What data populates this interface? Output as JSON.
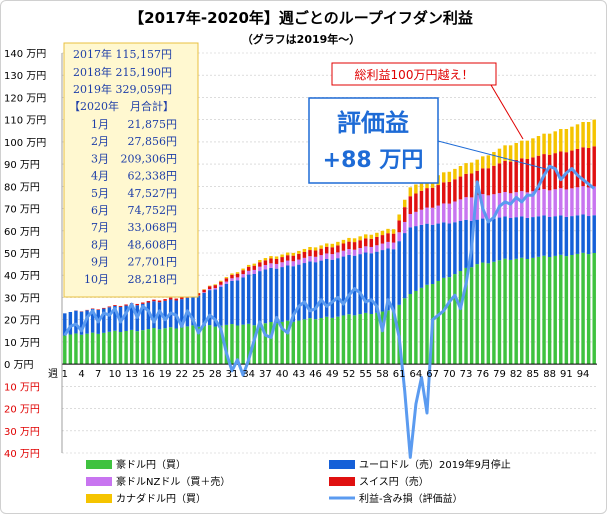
{
  "chart_data": {
    "type": "bar",
    "title": "【2017年-2020年】週ごとのループイフダン利益",
    "subtitle": "（グラフは2019年～）",
    "ylabel_unit": "万円",
    "xlabel": "週",
    "ylim": [
      -40,
      140
    ],
    "y_ticks": [
      {
        "v": 140,
        "label": "140 万円"
      },
      {
        "v": 130,
        "label": "130 万円"
      },
      {
        "v": 120,
        "label": "120 万円"
      },
      {
        "v": 110,
        "label": "110 万円"
      },
      {
        "v": 100,
        "label": "100 万円"
      },
      {
        "v": 90,
        "label": "90 万円"
      },
      {
        "v": 80,
        "label": "80 万円"
      },
      {
        "v": 70,
        "label": "70 万円"
      },
      {
        "v": 60,
        "label": "60 万円"
      },
      {
        "v": 50,
        "label": "50 万円"
      },
      {
        "v": 40,
        "label": "40 万円"
      },
      {
        "v": 30,
        "label": "30 万円"
      },
      {
        "v": 20,
        "label": "20 万円"
      },
      {
        "v": 10,
        "label": "10 万円"
      },
      {
        "v": 0,
        "label": "0 万円"
      },
      {
        "v": -10,
        "label": "10 万円"
      },
      {
        "v": -20,
        "label": "20 万円"
      },
      {
        "v": -30,
        "label": "30 万円"
      },
      {
        "v": -40,
        "label": "40 万円"
      }
    ],
    "x_tick_labels": [
      "1",
      "4",
      "7",
      "10",
      "13",
      "16",
      "19",
      "22",
      "25",
      "28",
      "31",
      "34",
      "37",
      "40",
      "43",
      "46",
      "49",
      "52",
      "55",
      "58",
      "61",
      "64",
      "67",
      "70",
      "73",
      "76",
      "79",
      "82",
      "85",
      "88",
      "91",
      "94"
    ],
    "weeks": 96,
    "legend_placement": "bottom",
    "series": [
      {
        "name": "豪ドル円（買）",
        "color": "#3fc23f",
        "knots": [
          [
            1,
            13
          ],
          [
            24,
            17
          ],
          [
            36,
            18
          ],
          [
            60,
            24
          ],
          [
            63,
            32
          ],
          [
            75,
            45
          ],
          [
            80,
            47
          ],
          [
            96,
            50
          ]
        ]
      },
      {
        "name": "ユーロドル（売）2019年9月停止",
        "color": "#1560d8",
        "knots": [
          [
            1,
            10
          ],
          [
            24,
            13
          ],
          [
            36,
            24
          ],
          [
            60,
            28
          ],
          [
            63,
            30
          ],
          [
            75,
            20
          ],
          [
            80,
            19
          ],
          [
            96,
            17
          ]
        ]
      },
      {
        "name": "豪ドルNZドル（買＋売）",
        "color": "#c875f0",
        "knots": [
          [
            1,
            0
          ],
          [
            24,
            0
          ],
          [
            36,
            2
          ],
          [
            60,
            3
          ],
          [
            63,
            6
          ],
          [
            75,
            11
          ],
          [
            80,
            11
          ],
          [
            96,
            13
          ]
        ]
      },
      {
        "name": "スイス円（売）",
        "color": "#e01010",
        "knots": [
          [
            1,
            0
          ],
          [
            24,
            1
          ],
          [
            36,
            2
          ],
          [
            60,
            4
          ],
          [
            63,
            8
          ],
          [
            75,
            11
          ],
          [
            80,
            14
          ],
          [
            96,
            18
          ]
        ]
      },
      {
        "name": "カナダドル円（買）",
        "color": "#f5c400",
        "knots": [
          [
            1,
            0
          ],
          [
            24,
            0
          ],
          [
            36,
            1
          ],
          [
            60,
            2
          ],
          [
            63,
            4
          ],
          [
            75,
            5
          ],
          [
            80,
            7
          ],
          [
            96,
            12
          ]
        ]
      }
    ],
    "line_series": {
      "name": "利益-含み損（評価益）",
      "color": "#5b9bf0",
      "values": [
        13,
        17,
        18,
        15,
        21,
        24,
        19,
        23,
        22,
        25,
        19,
        23,
        27,
        21,
        26,
        24,
        19,
        24,
        20,
        23,
        22,
        17,
        24,
        20,
        14,
        18,
        22,
        20,
        16,
        5,
        -3,
        2,
        -5,
        2,
        11,
        19,
        13,
        12,
        21,
        16,
        14,
        22,
        26,
        28,
        24,
        25,
        29,
        26,
        28,
        30,
        27,
        31,
        34,
        32,
        28,
        29,
        26,
        15,
        29,
        24,
        12,
        -12,
        -42,
        -18,
        -6,
        -22,
        20,
        22,
        24,
        28,
        31,
        25,
        36,
        52,
        82,
        70,
        64,
        66,
        71,
        73,
        72,
        75,
        73,
        76,
        76,
        80,
        85,
        89,
        88,
        83,
        86,
        88,
        85,
        83,
        81,
        79
      ]
    },
    "annotations": {
      "cumulative_title_2017": "2017年 115,157円",
      "cumulative_title_2018": "2018年 215,190円",
      "cumulative_title_2019": "2019年 329,059円",
      "monthly_header": "【2020年　月合計】",
      "monthly": [
        {
          "month": "1月",
          "value": "21,875円"
        },
        {
          "month": "2月",
          "value": "27,856円"
        },
        {
          "month": "3月",
          "value": "209,306円"
        },
        {
          "month": "4月",
          "value": "62,338円"
        },
        {
          "month": "5月",
          "value": "47,527円"
        },
        {
          "month": "6月",
          "value": "74,752円"
        },
        {
          "month": "7月",
          "value": "33,068円"
        },
        {
          "month": "8月",
          "value": "48,608円"
        },
        {
          "month": "9月",
          "value": "27,701円"
        },
        {
          "month": "10月",
          "value": "28,218円"
        }
      ],
      "callout_total": "総利益100万円越え！",
      "callout_eval_title": "評価益",
      "callout_eval_value": "+88 万円"
    },
    "colors": {
      "negative_tick": "#e00000",
      "grid": "#c8c8c8",
      "note_box_bg": "#fff8d0",
      "note_box_border": "#e8c040",
      "note_text": "#1f3fa8",
      "callout_red": "#e00000",
      "callout_blue": "#1e6bd6"
    }
  }
}
